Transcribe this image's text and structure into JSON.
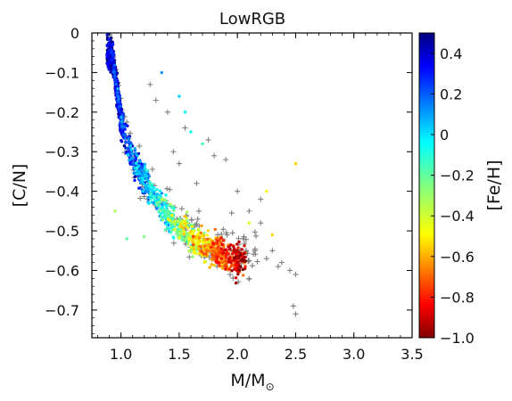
{
  "chart_data": {
    "type": "scatter",
    "title": "LowRGB",
    "xlabel": "M/M",
    "xlabel_subscript": "⊙",
    "ylabel": "[C/N]",
    "xlim": [
      0.75,
      3.5
    ],
    "ylim": [
      -0.77,
      0.0
    ],
    "x_ticks": [
      {
        "value": 1.0,
        "label": "1.0"
      },
      {
        "value": 1.5,
        "label": "1.5"
      },
      {
        "value": 2.0,
        "label": "2.0"
      },
      {
        "value": 2.5,
        "label": "2.5"
      },
      {
        "value": 3.0,
        "label": "3.0"
      },
      {
        "value": 3.5,
        "label": "3.5"
      }
    ],
    "y_ticks": [
      {
        "value": 0.0,
        "label": "0"
      },
      {
        "value": -0.1,
        "label": "−0.1"
      },
      {
        "value": -0.2,
        "label": "−0.2"
      },
      {
        "value": -0.3,
        "label": "−0.3"
      },
      {
        "value": -0.4,
        "label": "−0.4"
      },
      {
        "value": -0.5,
        "label": "−0.5"
      },
      {
        "value": -0.6,
        "label": "−0.6"
      },
      {
        "value": -0.7,
        "label": "−0.7"
      }
    ],
    "colorbar": {
      "label": "[Fe/H]",
      "range": [
        -1.0,
        0.5
      ],
      "colormap": "jet",
      "ticks": [
        {
          "value": 0.4,
          "label": "0.4"
        },
        {
          "value": 0.2,
          "label": "0.2"
        },
        {
          "value": 0.0,
          "label": "0"
        },
        {
          "value": -0.2,
          "label": "−0.2"
        },
        {
          "value": -0.4,
          "label": "−0.4"
        },
        {
          "value": -0.6,
          "label": "−0.6"
        },
        {
          "value": -0.8,
          "label": "−0.8"
        },
        {
          "value": -1.0,
          "label": "−1.0"
        }
      ]
    },
    "relation": {
      "description": "dense band of points following [C/N] vs mass; [Fe/H] increases with mass",
      "trend": [
        [
          0.92,
          -0.05
        ],
        [
          1.0,
          -0.22
        ],
        [
          1.1,
          -0.32
        ],
        [
          1.3,
          -0.42
        ],
        [
          1.5,
          -0.49
        ],
        [
          1.7,
          -0.535
        ],
        [
          1.9,
          -0.565
        ],
        [
          2.0,
          -0.575
        ]
      ],
      "scatter_width_cn": 0.035
    },
    "series": [
      {
        "marker": "dot",
        "color_by": "[Fe/H]",
        "count": 1400
      },
      {
        "marker": "plus",
        "color": "#808080",
        "count": 180
      }
    ],
    "outliers_dot": [
      [
        1.35,
        -0.1,
        -0.6
      ],
      [
        1.5,
        -0.16,
        -0.5
      ],
      [
        1.55,
        -0.2,
        -0.45
      ],
      [
        1.6,
        -0.25,
        -0.4
      ],
      [
        1.7,
        -0.28,
        -0.35
      ],
      [
        2.5,
        -0.33,
        0.0
      ],
      [
        2.25,
        -0.4,
        -0.05
      ],
      [
        1.05,
        -0.52,
        -0.3
      ],
      [
        1.2,
        -0.515,
        -0.25
      ],
      [
        0.95,
        -0.45,
        -0.2
      ],
      [
        2.1,
        -0.48,
        -0.1
      ],
      [
        2.3,
        -0.51,
        0.0
      ]
    ],
    "outliers_plus": [
      [
        1.3,
        -0.17
      ],
      [
        1.4,
        -0.2
      ],
      [
        1.55,
        -0.24
      ],
      [
        1.75,
        -0.27
      ],
      [
        1.8,
        -0.31
      ],
      [
        1.9,
        -0.32
      ],
      [
        2.0,
        -0.4
      ],
      [
        2.2,
        -0.42
      ],
      [
        2.1,
        -0.45
      ],
      [
        2.2,
        -0.48
      ],
      [
        2.3,
        -0.55
      ],
      [
        2.35,
        -0.59
      ],
      [
        2.45,
        -0.6
      ],
      [
        2.5,
        -0.61
      ],
      [
        2.48,
        -0.69
      ],
      [
        2.5,
        -0.71
      ],
      [
        2.15,
        -0.55
      ],
      [
        2.05,
        -0.52
      ],
      [
        1.25,
        -0.13
      ],
      [
        1.45,
        -0.3
      ],
      [
        1.65,
        -0.38
      ],
      [
        1.95,
        -0.455
      ],
      [
        2.38,
        -0.58
      ],
      [
        2.1,
        -0.575
      ],
      [
        1.5,
        -0.33
      ],
      [
        2.0,
        -0.6
      ],
      [
        1.6,
        -0.55
      ],
      [
        2.25,
        -0.57
      ]
    ],
    "grid": false,
    "legend": "none"
  }
}
